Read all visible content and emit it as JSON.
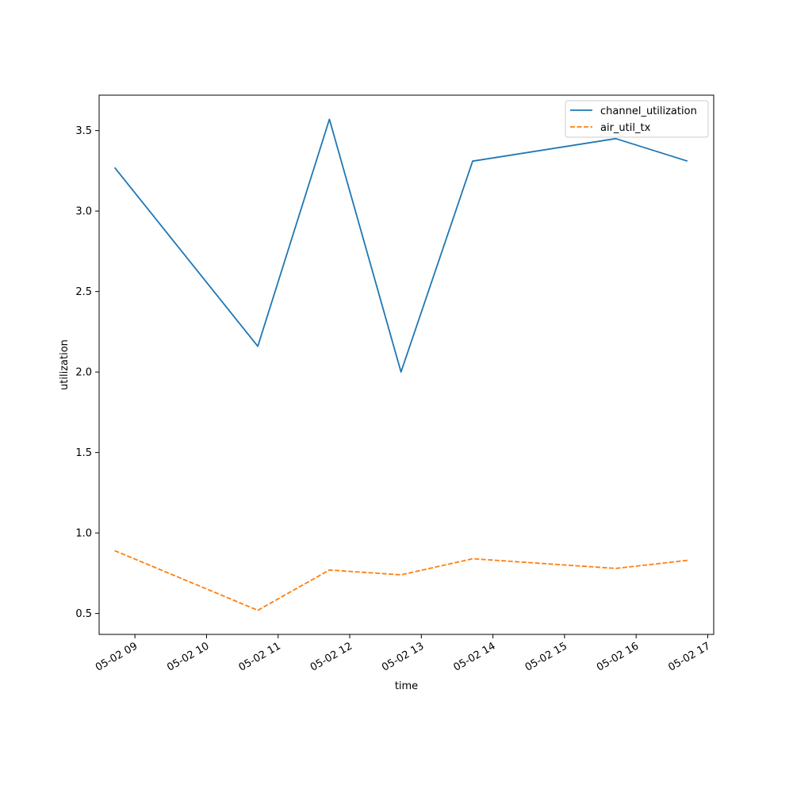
{
  "chart_data": {
    "type": "line",
    "title": "",
    "xlabel": "time",
    "ylabel": "utilization",
    "x": [
      "05-02 08:43",
      "05-02 10:43",
      "05-02 11:43",
      "05-02 12:43",
      "05-02 13:43",
      "05-02 15:43",
      "05-02 16:43"
    ],
    "series": [
      {
        "name": "channel_utilization",
        "values": [
          3.27,
          2.16,
          3.57,
          2.0,
          3.31,
          3.45,
          3.31
        ],
        "color": "#1f77b4",
        "style": "solid"
      },
      {
        "name": "air_util_tx",
        "values": [
          0.89,
          0.52,
          0.77,
          0.74,
          0.84,
          0.78,
          0.83
        ],
        "color": "#ff7f0e",
        "style": "dashed"
      }
    ],
    "xlim": [
      "05-02 08:30",
      "05-02 17:05"
    ],
    "ylim": [
      0.37,
      3.72
    ],
    "x_ticks": [
      "05-02 09",
      "05-02 10",
      "05-02 11",
      "05-02 12",
      "05-02 13",
      "05-02 14",
      "05-02 15",
      "05-02 16",
      "05-02 17"
    ],
    "y_ticks": [
      0.5,
      1.0,
      1.5,
      2.0,
      2.5,
      3.0,
      3.5
    ],
    "y_tick_labels": [
      "0.5",
      "1.0",
      "1.5",
      "2.0",
      "2.5",
      "3.0",
      "3.5"
    ],
    "grid": false,
    "legend_position": "top-right"
  }
}
